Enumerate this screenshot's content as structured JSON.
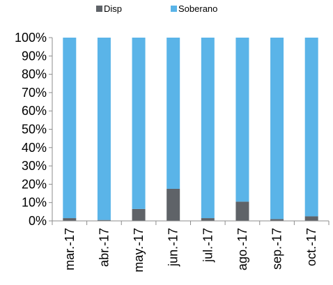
{
  "chart_data": {
    "type": "bar",
    "stacked": true,
    "percent_stacked": true,
    "categories": [
      "mar.-17",
      "abr.-17",
      "may.-17",
      "jun.-17",
      "jul.-17",
      "ago.-17",
      "sep.-17",
      "oct.-17"
    ],
    "series": [
      {
        "name": "Disp",
        "color": "#5f6368",
        "values": [
          1.5,
          0.5,
          6.5,
          17.5,
          1.5,
          10.5,
          1.0,
          2.5
        ]
      },
      {
        "name": "Soberano",
        "color": "#5ab4e8",
        "values": [
          98.5,
          99.5,
          93.5,
          82.5,
          98.5,
          89.5,
          99.0,
          97.5
        ]
      }
    ],
    "ylim": [
      0,
      100
    ],
    "yticks": [
      "0%",
      "10%",
      "20%",
      "30%",
      "40%",
      "50%",
      "60%",
      "70%",
      "80%",
      "90%",
      "100%"
    ],
    "legend_position": "top-center",
    "grid": false
  }
}
